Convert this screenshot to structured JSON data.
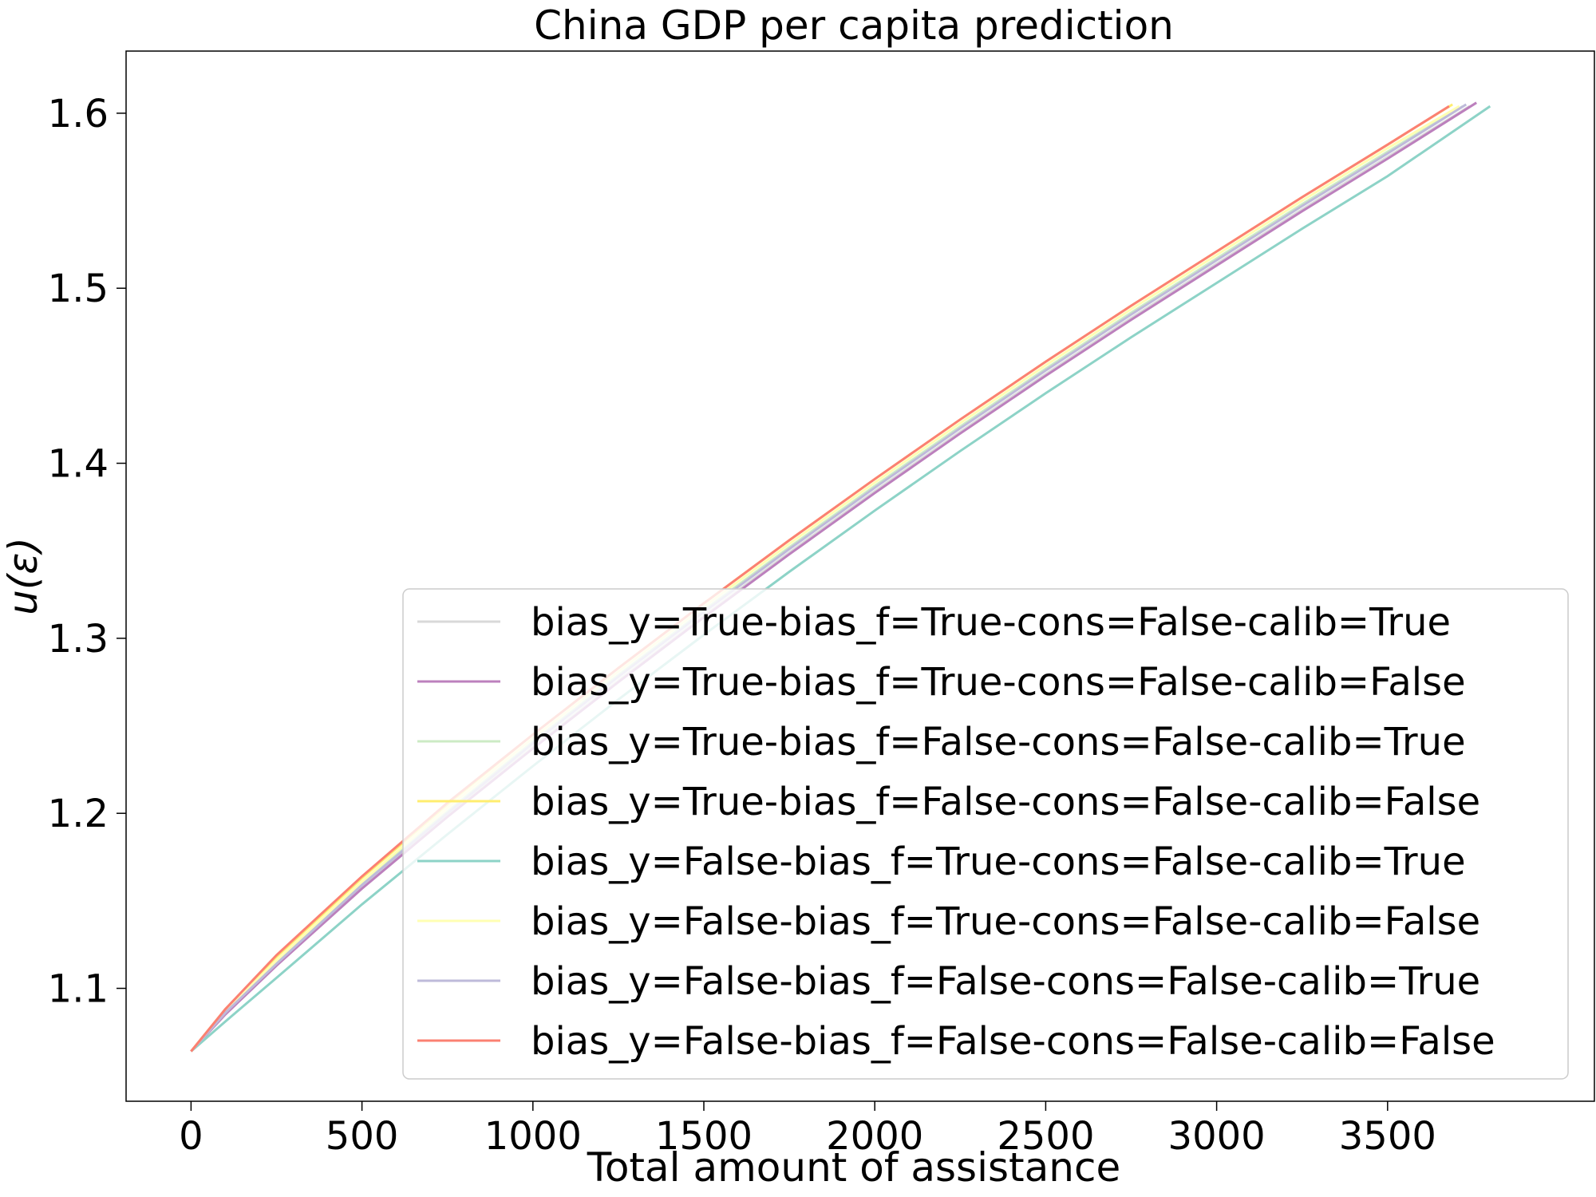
{
  "chart_data": {
    "type": "line",
    "title": "China GDP per capita prediction",
    "xlabel": "Total amount of assistance",
    "ylabel": "u(ε)",
    "xlim": [
      -190,
      4105
    ],
    "ylim": [
      1.0355,
      1.6355
    ],
    "xticks": [
      0,
      500,
      1000,
      1500,
      2000,
      2500,
      3000,
      3500
    ],
    "xtick_labels": [
      "0",
      "500",
      "1000",
      "1500",
      "2000",
      "2500",
      "3000",
      "3500"
    ],
    "yticks": [
      1.1,
      1.2,
      1.3,
      1.4,
      1.5,
      1.6
    ],
    "ytick_labels": [
      "1.1",
      "1.2",
      "1.3",
      "1.4",
      "1.5",
      "1.6"
    ],
    "grid": false,
    "legend_position": "lower-right",
    "series": [
      {
        "name": "bias_y=True-bias_f=True-cons=False-calib=True",
        "color": "#d9d9d9",
        "x": [
          0,
          100,
          250,
          500,
          750,
          1000,
          1250,
          1500,
          1750,
          2000,
          2250,
          2500,
          2750,
          3000,
          3250,
          3500,
          3740
        ],
        "y": [
          1.064,
          1.085,
          1.114,
          1.158,
          1.199,
          1.238,
          1.276,
          1.313,
          1.349,
          1.384,
          1.418,
          1.451,
          1.483,
          1.514,
          1.545,
          1.575,
          1.604
        ]
      },
      {
        "name": "bias_y=True-bias_f=True-cons=False-calib=False",
        "color": "#bc80bd",
        "x": [
          0,
          100,
          250,
          500,
          750,
          1000,
          1250,
          1500,
          1750,
          2000,
          2250,
          2500,
          2750,
          3000,
          3250,
          3500,
          3760
        ],
        "y": [
          1.064,
          1.085,
          1.113,
          1.157,
          1.198,
          1.237,
          1.275,
          1.312,
          1.348,
          1.383,
          1.417,
          1.45,
          1.482,
          1.513,
          1.544,
          1.574,
          1.606
        ]
      },
      {
        "name": "bias_y=True-bias_f=False-cons=False-calib=True",
        "color": "#ccebc5",
        "x": [
          0,
          100,
          250,
          500,
          750,
          1000,
          1250,
          1500,
          1750,
          2000,
          2250,
          2500,
          2750,
          3000,
          3250,
          3500,
          3720
        ],
        "y": [
          1.064,
          1.086,
          1.115,
          1.16,
          1.201,
          1.241,
          1.279,
          1.316,
          1.352,
          1.387,
          1.421,
          1.454,
          1.486,
          1.517,
          1.548,
          1.578,
          1.604
        ]
      },
      {
        "name": "bias_y=True-bias_f=False-cons=False-calib=False",
        "color": "#ffed6f",
        "x": [
          0,
          100,
          250,
          500,
          750,
          1000,
          1250,
          1500,
          1750,
          2000,
          2250,
          2500,
          2750,
          3000,
          3250,
          3500,
          3690
        ],
        "y": [
          1.064,
          1.088,
          1.118,
          1.163,
          1.205,
          1.245,
          1.283,
          1.32,
          1.356,
          1.391,
          1.425,
          1.458,
          1.49,
          1.521,
          1.552,
          1.582,
          1.605
        ]
      },
      {
        "name": "bias_y=False-bias_f=True-cons=False-calib=True",
        "color": "#8dd3c7",
        "x": [
          0,
          100,
          250,
          500,
          750,
          1000,
          1250,
          1500,
          1750,
          2000,
          2250,
          2500,
          2750,
          3000,
          3250,
          3500,
          3800
        ],
        "y": [
          1.064,
          1.081,
          1.106,
          1.148,
          1.188,
          1.227,
          1.265,
          1.302,
          1.338,
          1.373,
          1.407,
          1.44,
          1.472,
          1.503,
          1.534,
          1.564,
          1.604
        ]
      },
      {
        "name": "bias_y=False-bias_f=True-cons=False-calib=False",
        "color": "#ffffb3",
        "x": [
          0,
          100,
          250,
          500,
          750,
          1000,
          1250,
          1500,
          1750,
          2000,
          2250,
          2500,
          2750,
          3000,
          3250,
          3500,
          3710
        ],
        "y": [
          1.064,
          1.087,
          1.116,
          1.161,
          1.203,
          1.243,
          1.281,
          1.318,
          1.354,
          1.389,
          1.423,
          1.456,
          1.488,
          1.519,
          1.55,
          1.58,
          1.604
        ]
      },
      {
        "name": "bias_y=False-bias_f=False-cons=False-calib=True",
        "color": "#bebada",
        "x": [
          0,
          100,
          250,
          500,
          750,
          1000,
          1250,
          1500,
          1750,
          2000,
          2250,
          2500,
          2750,
          3000,
          3250,
          3500,
          3730
        ],
        "y": [
          1.064,
          1.086,
          1.114,
          1.159,
          1.2,
          1.24,
          1.278,
          1.315,
          1.351,
          1.386,
          1.42,
          1.453,
          1.485,
          1.516,
          1.547,
          1.577,
          1.605
        ]
      },
      {
        "name": "bias_y=False-bias_f=False-cons=False-calib=False",
        "color": "#fb8072",
        "x": [
          0,
          100,
          250,
          500,
          750,
          1000,
          1250,
          1500,
          1750,
          2000,
          2250,
          2500,
          2750,
          3000,
          3250,
          3500,
          3680
        ],
        "y": [
          1.064,
          1.088,
          1.119,
          1.164,
          1.206,
          1.245,
          1.283,
          1.32,
          1.356,
          1.391,
          1.425,
          1.458,
          1.49,
          1.521,
          1.552,
          1.582,
          1.604
        ]
      }
    ]
  }
}
